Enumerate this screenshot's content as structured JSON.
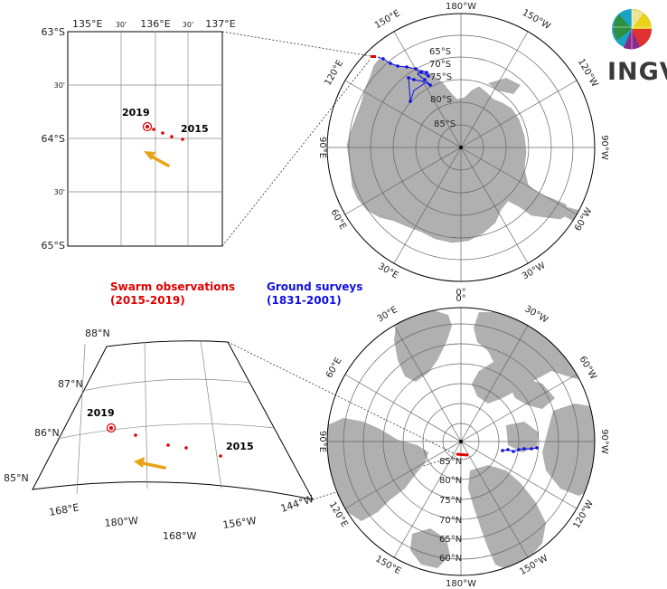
{
  "logo": {
    "text": "INGV"
  },
  "legend": {
    "swarm_title": "Swarm observations",
    "swarm_years": "(2015-2019)",
    "ground_title": "Ground surveys",
    "ground_years": "(1831-2001)",
    "swarm_color": "#e00000",
    "ground_color": "#1010e0",
    "land_color": "#b0b0b0",
    "arrow_color": "#e8a317"
  },
  "south_inset": {
    "lon_ticks": [
      "135°E",
      "30'",
      "136°E",
      "30'",
      "137°E"
    ],
    "lat_ticks": [
      "63°S",
      "30'",
      "64°S",
      "30'",
      "65°S"
    ],
    "label_2019": "2019",
    "label_2015": "2015"
  },
  "south_polar": {
    "meridians": [
      "180°W",
      "150°W",
      "120°W",
      "90°W",
      "60°W",
      "30°W",
      "0°",
      "30°E",
      "60°E",
      "90°E",
      "120°E",
      "150°E"
    ],
    "parallels": [
      "65°S",
      "70°S",
      "75°S",
      "80°S",
      "85°S"
    ]
  },
  "north_polar": {
    "meridians": [
      "0°",
      "30°W",
      "60°W",
      "90°W",
      "120°W",
      "150°W",
      "180°W",
      "150°E",
      "120°E",
      "90°E",
      "60°E",
      "30°E"
    ],
    "parallels": [
      "85°N",
      "80°N",
      "75°N",
      "70°N",
      "65°N",
      "60°N"
    ]
  },
  "north_inset": {
    "lat_ticks": [
      "88°N",
      "87°N",
      "86°N",
      "85°N"
    ],
    "lon_ticks": [
      "168°E",
      "180°W",
      "168°W",
      "156°W",
      "144°W"
    ],
    "label_2019": "2019",
    "label_2015": "2015"
  }
}
